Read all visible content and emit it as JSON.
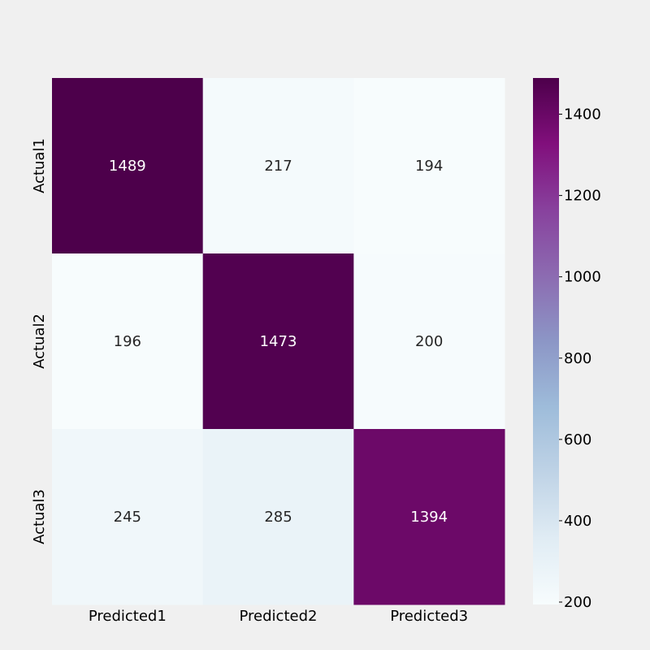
{
  "chart_data": {
    "type": "heatmap",
    "title": "",
    "xlabel": "",
    "ylabel": "",
    "x_categories": [
      "Predicted1",
      "Predicted2",
      "Predicted3"
    ],
    "y_categories": [
      "Actual1",
      "Actual2",
      "Actual3"
    ],
    "values": [
      [
        1489,
        217,
        194
      ],
      [
        196,
        1473,
        200
      ],
      [
        245,
        285,
        1394
      ]
    ],
    "colormap": "BuPu",
    "colorbar": {
      "range": [
        194,
        1489
      ],
      "ticks": [
        200,
        400,
        600,
        800,
        1000,
        1200,
        1400
      ]
    },
    "grid": false,
    "legend": "colorbar-right",
    "colors": {
      "background": "#f0f0f0",
      "dark_text": "#262626",
      "light_text": "#ffffff"
    }
  }
}
